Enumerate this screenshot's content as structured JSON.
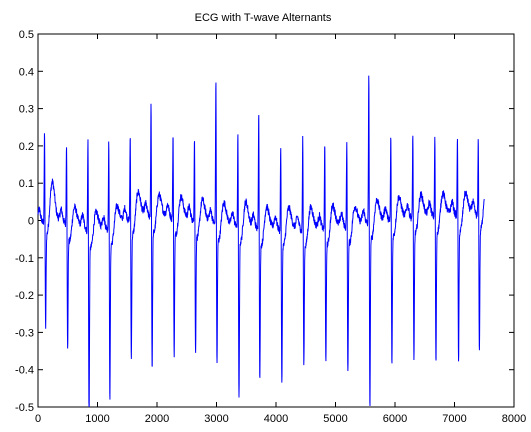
{
  "chart_data": {
    "type": "line",
    "title": "ECG with T-wave Alternants",
    "xlabel": "",
    "ylabel": "",
    "xlim": [
      0,
      8000
    ],
    "ylim": [
      -0.5,
      0.5
    ],
    "x_ticks": [
      0,
      1000,
      2000,
      3000,
      4000,
      5000,
      6000,
      7000,
      8000
    ],
    "x_tick_labels": [
      "0",
      "1000",
      "2000",
      "3000",
      "4000",
      "5000",
      "6000",
      "7000",
      "8000"
    ],
    "y_ticks": [
      -0.5,
      -0.4,
      -0.3,
      -0.2,
      -0.1,
      0,
      0.1,
      0.2,
      0.3,
      0.4,
      0.5
    ],
    "y_tick_labels": [
      "-0.5",
      "-0.4",
      "-0.3",
      "-0.2",
      "-0.1",
      "0",
      "0.1",
      "0.2",
      "0.3",
      "0.4",
      "0.5"
    ],
    "grid": false,
    "legend": "none",
    "line_color": "#0000ff",
    "beats": [
      {
        "x": 110,
        "r": 0.26,
        "s": -0.26,
        "t": 0.12
      },
      {
        "x": 480,
        "r": 0.24,
        "s": -0.31,
        "t": 0.06
      },
      {
        "x": 840,
        "r": 0.27,
        "s": -0.48,
        "t": 0.06
      },
      {
        "x": 1190,
        "r": 0.26,
        "s": -0.43,
        "t": 0.06
      },
      {
        "x": 1550,
        "r": 0.25,
        "s": -0.35,
        "t": 0.08
      },
      {
        "x": 1900,
        "r": 0.33,
        "s": -0.38,
        "t": 0.07
      },
      {
        "x": 2270,
        "r": 0.25,
        "s": -0.34,
        "t": 0.07
      },
      {
        "x": 2630,
        "r": 0.25,
        "s": -0.33,
        "t": 0.07
      },
      {
        "x": 2990,
        "r": 0.41,
        "s": -0.35,
        "t": 0.07
      },
      {
        "x": 3360,
        "r": 0.27,
        "s": -0.44,
        "t": 0.08
      },
      {
        "x": 3710,
        "r": 0.34,
        "s": -0.38,
        "t": 0.07
      },
      {
        "x": 4080,
        "r": 0.25,
        "s": -0.39,
        "t": 0.07
      },
      {
        "x": 4450,
        "r": 0.27,
        "s": -0.34,
        "t": 0.07
      },
      {
        "x": 4820,
        "r": 0.25,
        "s": -0.34,
        "t": 0.07
      },
      {
        "x": 5190,
        "r": 0.25,
        "s": -0.37,
        "t": 0.06
      },
      {
        "x": 5560,
        "r": 0.43,
        "s": -0.47,
        "t": 0.07
      },
      {
        "x": 5930,
        "r": 0.25,
        "s": -0.36,
        "t": 0.07
      },
      {
        "x": 6300,
        "r": 0.25,
        "s": -0.36,
        "t": 0.07
      },
      {
        "x": 6670,
        "r": 0.24,
        "s": -0.37,
        "t": 0.07
      },
      {
        "x": 7050,
        "r": 0.24,
        "s": -0.37,
        "t": 0.07
      },
      {
        "x": 7400,
        "r": 0.23,
        "s": -0.34,
        "t": 0.1
      }
    ],
    "baseline": 0.0,
    "x_end": 7500
  }
}
